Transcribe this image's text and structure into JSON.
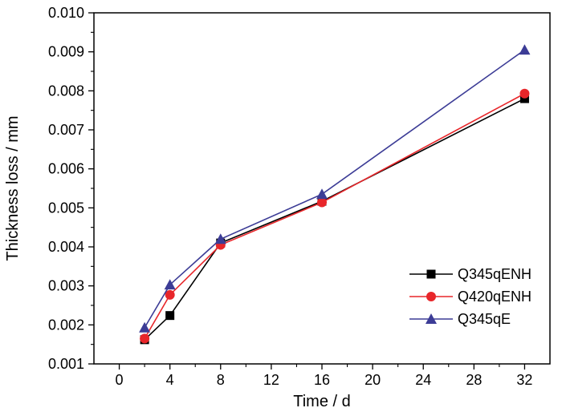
{
  "chart_data": {
    "type": "line",
    "title": "",
    "xlabel": "Time / d",
    "ylabel": "Thickness loss / mm",
    "xlim": [
      -2,
      34
    ],
    "ylim": [
      0.001,
      0.01
    ],
    "xticks": [
      0,
      4,
      8,
      12,
      16,
      20,
      24,
      28,
      32
    ],
    "yticks": [
      0.001,
      0.002,
      0.003,
      0.004,
      0.005,
      0.006,
      0.007,
      0.008,
      0.009,
      0.01
    ],
    "xtick_labels": [
      "0",
      "4",
      "8",
      "12",
      "16",
      "20",
      "24",
      "28",
      "32"
    ],
    "ytick_labels": [
      "0.001",
      "0.002",
      "0.003",
      "0.004",
      "0.005",
      "0.006",
      "0.007",
      "0.008",
      "0.009",
      "0.010"
    ],
    "grid": false,
    "legend_position": "bottom-right",
    "x": [
      2,
      4,
      8,
      16,
      32
    ],
    "series": [
      {
        "name": "Q345qENH",
        "color": "#000000",
        "marker": "square",
        "values": [
          0.00162,
          0.00224,
          0.0041,
          0.00517,
          0.0078
        ]
      },
      {
        "name": "Q420qENH",
        "color": "#e8262a",
        "marker": "circle",
        "values": [
          0.00165,
          0.00277,
          0.00405,
          0.00514,
          0.00793
        ]
      },
      {
        "name": "Q345qE",
        "color": "#3c3c96",
        "marker": "triangle",
        "values": [
          0.00193,
          0.00303,
          0.0042,
          0.00535,
          0.00905
        ]
      }
    ]
  }
}
